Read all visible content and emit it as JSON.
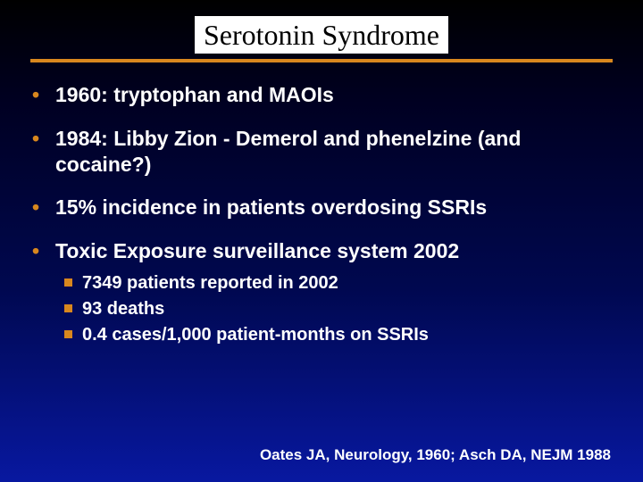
{
  "title": "Serotonin Syndrome",
  "colors": {
    "accent": "#d8871e",
    "text": "#ffffff",
    "title_text": "#000000",
    "title_bg": "#ffffff",
    "bg_gradient_top": "#000000",
    "bg_gradient_bottom": "#0818a0"
  },
  "typography": {
    "title_font": "Georgia, serif",
    "title_size_pt": 24,
    "body_font": "Arial, sans-serif",
    "bullet_size_pt": 17,
    "sub_bullet_size_pt": 15,
    "citation_size_pt": 13
  },
  "bullets": [
    {
      "text": "1960: tryptophan and MAOIs"
    },
    {
      "text": "1984: Libby Zion - Demerol and phenelzine (and cocaine?)"
    },
    {
      "text": "15% incidence in patients overdosing SSRIs"
    },
    {
      "text": "Toxic Exposure surveillance system 2002",
      "sub": [
        "7349 patients reported in 2002",
        "93 deaths",
        "0.4 cases/1,000 patient-months on SSRIs"
      ]
    }
  ],
  "citation": "Oates JA, Neurology, 1960; Asch DA, NEJM 1988"
}
